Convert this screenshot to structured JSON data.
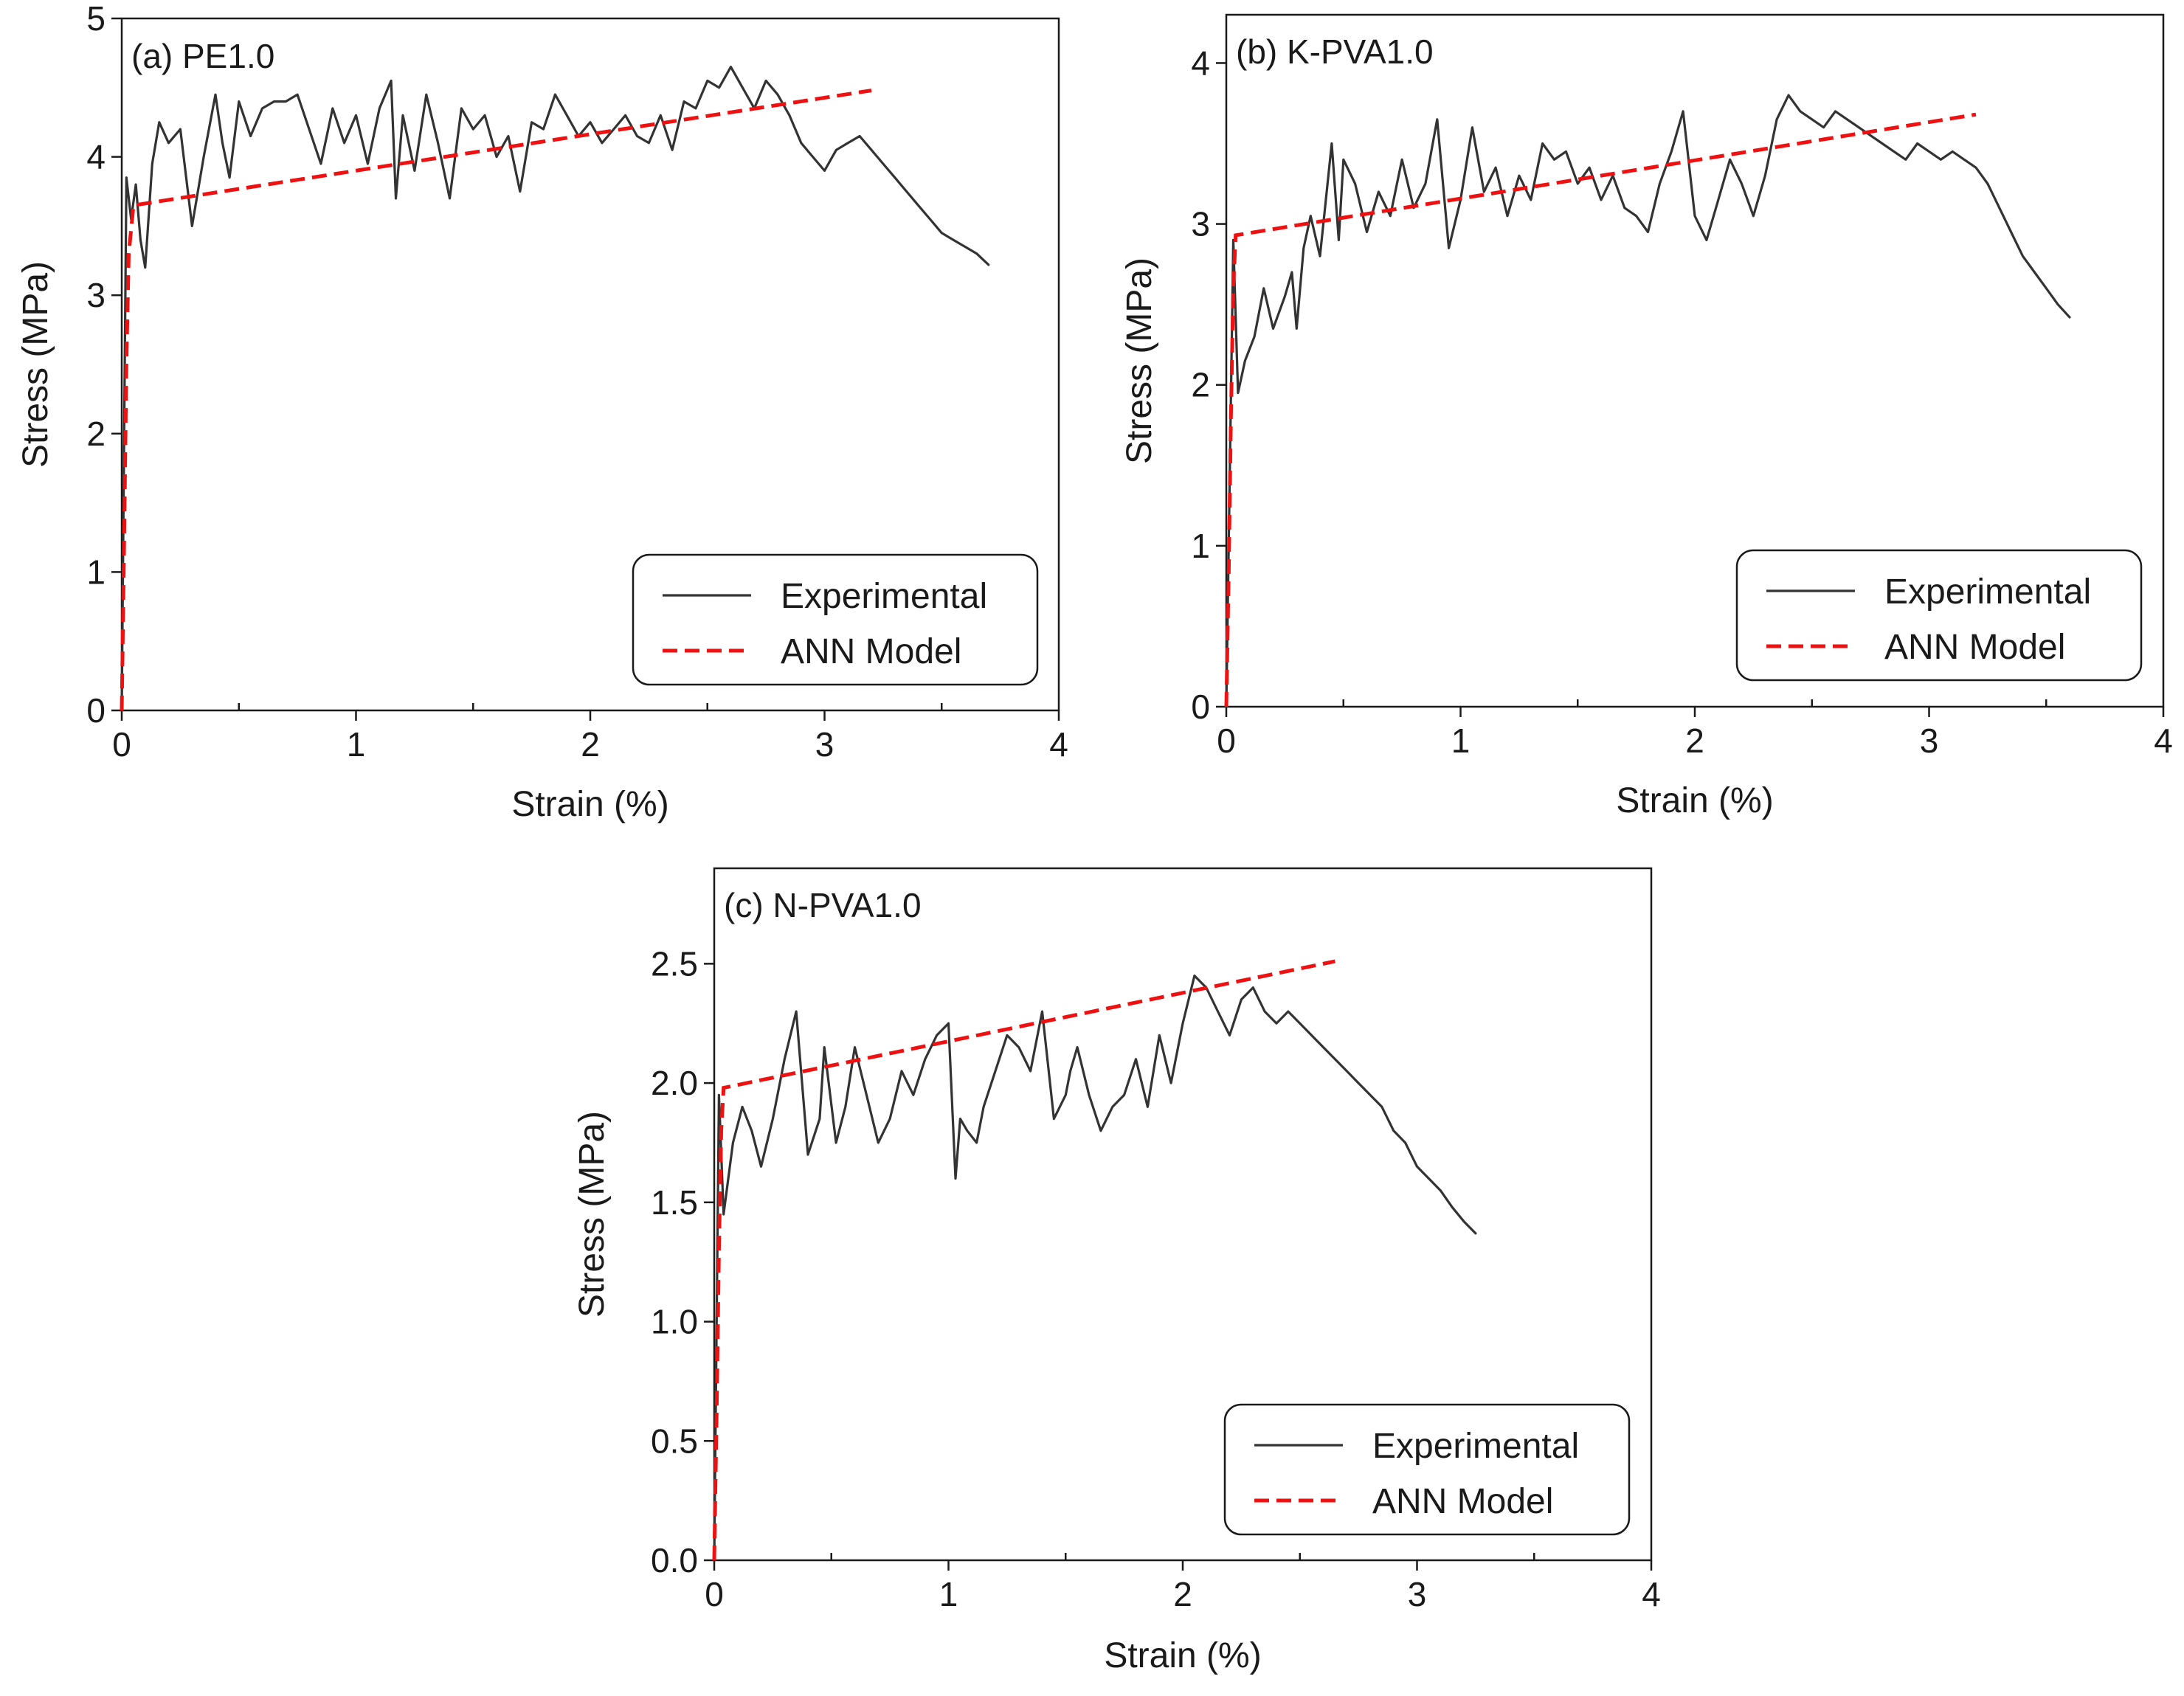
{
  "colors": {
    "experimental": "#333333",
    "ann_model": "#ee1111",
    "axes": "#1a1a1a"
  },
  "chart_data": [
    {
      "type": "line",
      "title": "(a) PE1.0",
      "xlabel": "Strain (%)",
      "ylabel": "Stress (MPa)",
      "xlim": [
        0,
        4
      ],
      "ylim": [
        0,
        5
      ],
      "xticks": [
        0,
        1,
        2,
        3,
        4
      ],
      "xtick_labels": [
        "0",
        "1",
        "2",
        "3",
        "4"
      ],
      "yticks": [
        0,
        1,
        2,
        3,
        4,
        5
      ],
      "ytick_labels": [
        "0",
        "1",
        "2",
        "3",
        "4",
        "5"
      ],
      "legend_position": "bottom-right",
      "series": [
        {
          "name": "Experimental",
          "style": "solid",
          "x": [
            0,
            0.02,
            0.04,
            0.06,
            0.08,
            0.1,
            0.13,
            0.16,
            0.2,
            0.25,
            0.3,
            0.35,
            0.4,
            0.43,
            0.46,
            0.5,
            0.55,
            0.6,
            0.65,
            0.7,
            0.75,
            0.8,
            0.85,
            0.9,
            0.95,
            1.0,
            1.05,
            1.1,
            1.15,
            1.17,
            1.2,
            1.25,
            1.3,
            1.35,
            1.4,
            1.45,
            1.5,
            1.55,
            1.6,
            1.65,
            1.7,
            1.75,
            1.8,
            1.85,
            1.9,
            1.95,
            2.0,
            2.05,
            2.1,
            2.15,
            2.2,
            2.25,
            2.3,
            2.35,
            2.4,
            2.45,
            2.5,
            2.55,
            2.6,
            2.65,
            2.7,
            2.75,
            2.8,
            2.85,
            2.9,
            2.95,
            3.0,
            3.05,
            3.1,
            3.15,
            3.2,
            3.25,
            3.3,
            3.35,
            3.4,
            3.45,
            3.5,
            3.55,
            3.6,
            3.65,
            3.7
          ],
          "y": [
            0,
            3.85,
            3.55,
            3.8,
            3.4,
            3.2,
            3.95,
            4.25,
            4.1,
            4.2,
            3.5,
            4.0,
            4.45,
            4.1,
            3.85,
            4.4,
            4.15,
            4.35,
            4.4,
            4.4,
            4.45,
            4.2,
            3.95,
            4.35,
            4.1,
            4.3,
            3.95,
            4.35,
            4.55,
            3.7,
            4.3,
            3.9,
            4.45,
            4.1,
            3.7,
            4.35,
            4.2,
            4.3,
            4.0,
            4.15,
            3.75,
            4.25,
            4.2,
            4.45,
            4.3,
            4.15,
            4.25,
            4.1,
            4.2,
            4.3,
            4.15,
            4.1,
            4.3,
            4.05,
            4.4,
            4.35,
            4.55,
            4.5,
            4.65,
            4.5,
            4.35,
            4.55,
            4.45,
            4.3,
            4.1,
            4.0,
            3.9,
            4.05,
            4.1,
            4.15,
            4.05,
            3.95,
            3.85,
            3.75,
            3.65,
            3.55,
            3.45,
            3.4,
            3.35,
            3.3,
            3.22
          ]
        },
        {
          "name": "ANN Model",
          "style": "dashed",
          "x": [
            0,
            0.01,
            0.02,
            0.03,
            0.05,
            3.2
          ],
          "y": [
            0,
            1.2,
            2.5,
            3.3,
            3.65,
            4.48
          ]
        }
      ]
    },
    {
      "type": "line",
      "title": "(b) K-PVA1.0",
      "xlabel": "Strain (%)",
      "ylabel": "Stress (MPa)",
      "xlim": [
        0,
        4
      ],
      "ylim": [
        0,
        4.3
      ],
      "xticks": [
        0,
        1,
        2,
        3,
        4
      ],
      "xtick_labels": [
        "0",
        "1",
        "2",
        "3",
        "4"
      ],
      "yticks": [
        0,
        1,
        2,
        3,
        4
      ],
      "ytick_labels": [
        "0",
        "1",
        "2",
        "3",
        "4"
      ],
      "legend_position": "bottom-right",
      "series": [
        {
          "name": "Experimental",
          "style": "solid",
          "x": [
            0,
            0.03,
            0.05,
            0.08,
            0.12,
            0.16,
            0.2,
            0.25,
            0.28,
            0.3,
            0.33,
            0.36,
            0.4,
            0.45,
            0.48,
            0.5,
            0.55,
            0.6,
            0.65,
            0.7,
            0.75,
            0.8,
            0.85,
            0.9,
            0.95,
            1.0,
            1.05,
            1.1,
            1.15,
            1.2,
            1.25,
            1.3,
            1.35,
            1.4,
            1.45,
            1.5,
            1.55,
            1.6,
            1.65,
            1.7,
            1.75,
            1.8,
            1.85,
            1.9,
            1.95,
            2.0,
            2.05,
            2.1,
            2.15,
            2.2,
            2.25,
            2.3,
            2.35,
            2.4,
            2.45,
            2.5,
            2.55,
            2.6,
            2.65,
            2.7,
            2.75,
            2.8,
            2.85,
            2.9,
            2.95,
            3.0,
            3.05,
            3.1,
            3.15,
            3.2,
            3.25,
            3.3,
            3.35,
            3.4,
            3.45,
            3.5,
            3.55,
            3.6
          ],
          "y": [
            0,
            2.9,
            1.95,
            2.15,
            2.3,
            2.6,
            2.35,
            2.55,
            2.7,
            2.35,
            2.85,
            3.05,
            2.8,
            3.5,
            2.9,
            3.4,
            3.25,
            2.95,
            3.2,
            3.05,
            3.4,
            3.1,
            3.25,
            3.65,
            2.85,
            3.15,
            3.6,
            3.2,
            3.35,
            3.05,
            3.3,
            3.15,
            3.5,
            3.4,
            3.45,
            3.25,
            3.35,
            3.15,
            3.3,
            3.1,
            3.05,
            2.95,
            3.25,
            3.45,
            3.7,
            3.05,
            2.9,
            3.15,
            3.4,
            3.25,
            3.05,
            3.3,
            3.65,
            3.8,
            3.7,
            3.65,
            3.6,
            3.7,
            3.65,
            3.6,
            3.55,
            3.5,
            3.45,
            3.4,
            3.5,
            3.45,
            3.4,
            3.45,
            3.4,
            3.35,
            3.25,
            3.1,
            2.95,
            2.8,
            2.7,
            2.6,
            2.5,
            2.42
          ]
        },
        {
          "name": "ANN Model",
          "style": "dashed",
          "x": [
            0,
            0.01,
            0.02,
            0.03,
            0.04,
            3.2
          ],
          "y": [
            0,
            0.8,
            1.8,
            2.6,
            2.93,
            3.68
          ]
        }
      ]
    },
    {
      "type": "line",
      "title": "(c) N-PVA1.0",
      "xlabel": "Strain (%)",
      "ylabel": "Stress (MPa)",
      "xlim": [
        0,
        4
      ],
      "ylim": [
        0,
        2.9
      ],
      "xticks": [
        0,
        1,
        2,
        3,
        4
      ],
      "xtick_labels": [
        "0",
        "1",
        "2",
        "3",
        "4"
      ],
      "yticks": [
        0,
        0.5,
        1.0,
        1.5,
        2.0,
        2.5
      ],
      "ytick_labels": [
        "0.0",
        "0.5",
        "1.0",
        "1.5",
        "2.0",
        "2.5"
      ],
      "legend_position": "bottom-right",
      "series": [
        {
          "name": "Experimental",
          "style": "solid",
          "x": [
            0,
            0.02,
            0.04,
            0.08,
            0.12,
            0.16,
            0.2,
            0.25,
            0.3,
            0.35,
            0.4,
            0.45,
            0.47,
            0.52,
            0.56,
            0.6,
            0.65,
            0.7,
            0.75,
            0.8,
            0.85,
            0.9,
            0.95,
            1.0,
            1.03,
            1.05,
            1.08,
            1.12,
            1.15,
            1.2,
            1.25,
            1.3,
            1.35,
            1.4,
            1.45,
            1.5,
            1.52,
            1.55,
            1.6,
            1.65,
            1.7,
            1.75,
            1.8,
            1.85,
            1.9,
            1.95,
            2.0,
            2.05,
            2.1,
            2.15,
            2.2,
            2.25,
            2.3,
            2.35,
            2.4,
            2.45,
            2.5,
            2.55,
            2.6,
            2.65,
            2.7,
            2.75,
            2.8,
            2.85,
            2.9,
            2.95,
            3.0,
            3.05,
            3.1,
            3.15,
            3.2,
            3.25
          ],
          "y": [
            0,
            1.95,
            1.45,
            1.75,
            1.9,
            1.8,
            1.65,
            1.85,
            2.1,
            2.3,
            1.7,
            1.85,
            2.15,
            1.75,
            1.9,
            2.15,
            1.95,
            1.75,
            1.85,
            2.05,
            1.95,
            2.1,
            2.2,
            2.25,
            1.6,
            1.85,
            1.8,
            1.75,
            1.9,
            2.05,
            2.2,
            2.15,
            2.05,
            2.3,
            1.85,
            1.95,
            2.05,
            2.15,
            1.95,
            1.8,
            1.9,
            1.95,
            2.1,
            1.9,
            2.2,
            2.0,
            2.25,
            2.45,
            2.4,
            2.3,
            2.2,
            2.35,
            2.4,
            2.3,
            2.25,
            2.3,
            2.25,
            2.2,
            2.15,
            2.1,
            2.05,
            2.0,
            1.95,
            1.9,
            1.8,
            1.75,
            1.65,
            1.6,
            1.55,
            1.48,
            1.42,
            1.37
          ]
        },
        {
          "name": "ANN Model",
          "style": "dashed",
          "x": [
            0,
            0.01,
            0.02,
            0.03,
            0.04,
            2.65
          ],
          "y": [
            0,
            0.6,
            1.3,
            1.8,
            1.98,
            2.51
          ]
        }
      ]
    }
  ]
}
